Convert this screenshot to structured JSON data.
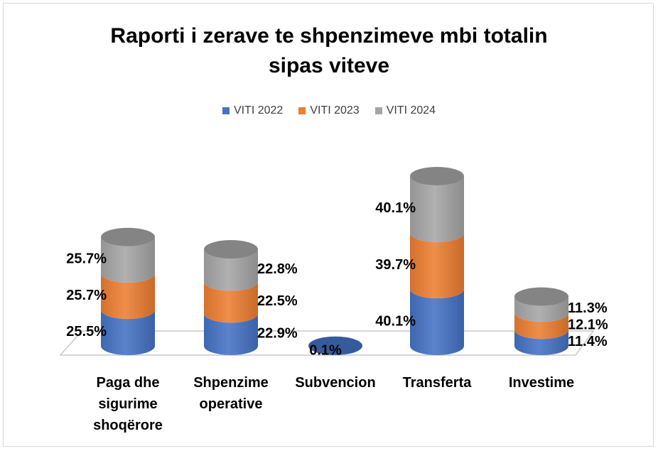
{
  "chart_data": {
    "type": "cylinder-stacked",
    "title": "Raporti i zerave te shpenzimeve mbi totalin sipas viteve",
    "categories": [
      "Paga dhe sigurime shoqërore",
      "Shpenzime operative",
      "Subvencion",
      "Transferta",
      "Investime"
    ],
    "series": [
      {
        "name": "VITI 2022",
        "color": "#4472c4",
        "values": [
          25.5,
          22.9,
          0.1,
          40.1,
          11.4
        ],
        "value_labels": [
          "25.5%",
          "22.9%",
          "0.1%",
          "40.1%",
          "11.4%"
        ]
      },
      {
        "name": "VITI 2023",
        "color": "#ed7d31",
        "values": [
          25.7,
          22.5,
          null,
          39.7,
          12.1
        ],
        "value_labels": [
          "25.7%",
          "22.5%",
          null,
          "39.7%",
          "12.1%"
        ]
      },
      {
        "name": "VITI 2024",
        "color": "#a5a5a5",
        "values": [
          25.7,
          22.8,
          null,
          40.1,
          11.3
        ],
        "value_labels": [
          "25.7%",
          "22.8%",
          null,
          "40.1%",
          "11.3%"
        ]
      }
    ],
    "legend": "top"
  }
}
